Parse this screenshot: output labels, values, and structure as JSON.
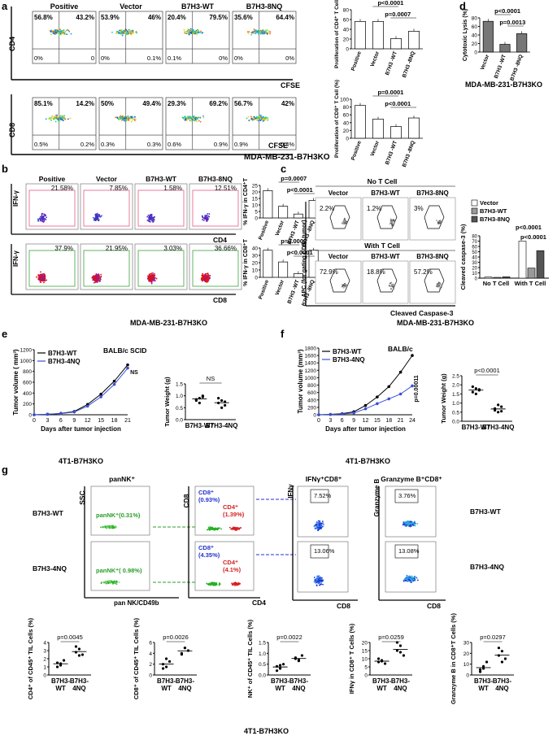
{
  "panel_a": {
    "label": "a",
    "groups": [
      "Positive",
      "Vector",
      "B7H3-WT",
      "B7H3-8NQ"
    ],
    "row1": {
      "ylabel": "CD4",
      "xlabel": "CFSE",
      "quads": [
        {
          "ul": "56.8%",
          "ur": "43.2%",
          "ll": "0%",
          "lr": "0"
        },
        {
          "ul": "53.9%",
          "ur": "46%",
          "ll": "0%",
          "lr": "0.1%"
        },
        {
          "ul": "20.4%",
          "ur": "79.5%",
          "ll": "0.1%",
          "lr": "0%"
        },
        {
          "ul": "35.6%",
          "ur": "64.4%",
          "ll": "0%",
          "lr": "0%"
        }
      ]
    },
    "row2": {
      "ylabel": "CD8",
      "xlabel": "CFSE",
      "quads": [
        {
          "ul": "85.1%",
          "ur": "14.2%",
          "ll": "0.5%",
          "lr": "0.2%"
        },
        {
          "ul": "50%",
          "ur": "49.4%",
          "ll": "0.3%",
          "lr": "0.3%"
        },
        {
          "ul": "29.3%",
          "ur": "69.2%",
          "ll": "0.6%",
          "lr": "0.9%"
        },
        {
          "ul": "56.7%",
          "ur": "42%",
          "ll": "0.9%",
          "lr": "0.4%"
        }
      ]
    },
    "bar1": {
      "ylabel": "Proliferation of CD4⁺ T Cell (%)",
      "ticks": [
        "0",
        "20",
        "40",
        "60",
        "80"
      ],
      "pvals": [
        "p<0.0001",
        "p=0.0007"
      ]
    },
    "bar2": {
      "ylabel": "Proliferation of CD8⁺ T Cell (%)",
      "ticks": [
        "0",
        "20",
        "40",
        "60",
        "80",
        "100"
      ],
      "pvals": [
        "p=0.0001",
        "p<0.0001"
      ]
    },
    "bar_xlabels": [
      "Positive",
      "Vector",
      "B7H3 -WT",
      "B7H3 -8NQ"
    ],
    "footer": "MDA-MB-231-B7H3KO"
  },
  "panel_d": {
    "label": "d",
    "ylabel": "Cytotoxic Lysis (%)",
    "ticks": [
      "0",
      "20",
      "40",
      "60",
      "80"
    ],
    "xlabels": [
      "Vector",
      "B7H3 -WT",
      "B7H3 -8NQ"
    ],
    "pvals": [
      "p<0.0001",
      "p=0.0013"
    ],
    "footer": "MDA-MB-231-B7H3KO"
  },
  "panel_b": {
    "label": "b",
    "groups": [
      "Positive",
      "Vector",
      "B7H3-WT",
      "B7H3-8NQ"
    ],
    "row1": {
      "ylabel": "IFN-γ",
      "xlabel": "CD4",
      "pcts": [
        "21.58%",
        "7.85%",
        "1.58%",
        "12.51%"
      ]
    },
    "row2": {
      "ylabel": "IFN-γ",
      "xlabel": "CD8",
      "pcts": [
        "37.9%",
        "21.95%",
        "3.03%",
        "36.66%"
      ]
    },
    "bar1": {
      "ylabel": "% IFN-γ in CD4⁺T",
      "ticks": [
        "0",
        "5",
        "10",
        "15",
        "20",
        "25"
      ],
      "pvals": [
        "p=0.0007",
        "p<0.0001"
      ]
    },
    "bar2": {
      "ylabel": "% IFN-γ in CD8⁺T",
      "ticks": [
        "0",
        "10",
        "20",
        "30",
        "40"
      ],
      "pvals": [
        "p=0.0002",
        "p<0.0001"
      ]
    },
    "bar_xlabels": [
      "Positive",
      "Vector",
      "B7H3 -WT",
      "B7H3 -8NQ"
    ],
    "footer": "MDA-MB-231-B7H3KO"
  },
  "panel_c": {
    "label": "c",
    "header_no": "No T Cell",
    "header_with": "With T Cell",
    "groups": [
      "Vector",
      "B7H3-WT",
      "B7H3-8NQ"
    ],
    "no_pcts": [
      "2.2%",
      "1.2%",
      "3%"
    ],
    "with_pcts": [
      "72.9%",
      "18.8%",
      "57.2%"
    ],
    "ylabel": "APC (for gating CD3⁻ tumor)",
    "xlabel": "Cleaved Caspase-3",
    "legend": [
      "Vector",
      "B7H3-WT",
      "B7H3-8NQ"
    ],
    "bar": {
      "ylabel": "Cleaved caspase-3 (%)",
      "ticks": [
        "0",
        "10",
        "20",
        "30",
        "40",
        "50",
        "60",
        "70",
        "80"
      ],
      "xlabels": [
        "No T Cell",
        "With T Cell"
      ],
      "pvals": [
        "p<0.0001",
        "p<0.0001"
      ]
    },
    "footer": "MDA-MB-231-B7H3KO"
  },
  "panel_e": {
    "label": "e",
    "title": "BALB/c  SCID",
    "legend": [
      "B7H3-WT",
      "B7H3-4NQ"
    ],
    "ylabel": "Tumor volume ( mm³)",
    "xlabel": "Days after tumor injection",
    "yticks": [
      "0",
      "200",
      "400",
      "600",
      "800",
      "1000",
      "1200"
    ],
    "xticks": [
      "0",
      "3",
      "6",
      "9",
      "12",
      "15",
      "18",
      "21"
    ],
    "ns": "NS",
    "weight": {
      "ylabel": "Tumor Weight (g)",
      "ticks": [
        "0.0",
        "0.5",
        "1.0",
        "1.5"
      ],
      "xlabels": [
        "B7H3-WT",
        "B7H3-4NQ"
      ],
      "ns": "NS"
    },
    "footer": "4T1-B7H3KO"
  },
  "panel_f": {
    "label": "f",
    "title": "BALB/c",
    "legend": [
      "B7H3-WT",
      "B7H3-4NQ"
    ],
    "ylabel": "Tumor volume (mm³)",
    "xlabel": "Days after tumor injection",
    "yticks": [
      "0",
      "200",
      "400",
      "600",
      "800",
      "1000",
      "1200",
      "1400",
      "1600",
      "1800"
    ],
    "xticks": [
      "0",
      "3",
      "6",
      "9",
      "12",
      "15",
      "18",
      "21",
      "24"
    ],
    "pval": "p=0.00011",
    "weight": {
      "ylabel": "Tumor Weight (g)",
      "ticks": [
        "0.0",
        "0.5",
        "1.0",
        "1.5",
        "2.0",
        "2.5"
      ],
      "xlabels": [
        "B7H3-WT",
        "B7H3-4NQ"
      ],
      "pval": "p<0.0001"
    },
    "footer": "4T1-B7H3KO"
  },
  "panel_g": {
    "label": "g",
    "col_titles": [
      "panNK⁺",
      "IFNγ⁺CD8⁺",
      "Granzyme B⁺CD8⁺"
    ],
    "rows": [
      "B7H3-WT",
      "B7H3-4NQ"
    ],
    "nk_pcts": [
      "panNK⁺(0.31%)",
      "panNK⁺( 0.98%)"
    ],
    "cd8_pcts": [
      "CD8⁺ (0.93%)",
      "CD8⁺ (4.35%)"
    ],
    "cd4_pcts": [
      "CD4⁺ (1.39%)",
      "CD4⁺ (4.1%)"
    ],
    "ifn_pcts": [
      "7.52%",
      "13.06%"
    ],
    "gzb_pcts": [
      "3.76%",
      "13.08%"
    ],
    "axis": {
      "ssc": "SSC",
      "nk": "pan NK/CD49b",
      "cd8": "CD8",
      "cd4": "CD4",
      "ifn": "IFNγ",
      "gzb": "Granzyme B",
      "cd8x": "CD8"
    },
    "plots": [
      {
        "ylabel": "CD4⁺ of CD45⁺ TIL Cells (%)",
        "ticks": [
          "0",
          "1",
          "2",
          "3",
          "4"
        ],
        "pval": "p=0.0045"
      },
      {
        "ylabel": "CD8⁺ of CD45⁺ TIL Cells (%)",
        "ticks": [
          "0",
          "2",
          "4",
          "6"
        ],
        "pval": "p=0.0026"
      },
      {
        "ylabel": "NK⁺ of CD45⁺ TIL Cells (%)",
        "ticks": [
          "0.0",
          "0.5",
          "1.0",
          "1.5"
        ],
        "pval": "p=0.0022"
      },
      {
        "ylabel": "IFNγ in CD8⁺ T Cells (%)",
        "ticks": [
          "0",
          "5",
          "10",
          "15",
          "20"
        ],
        "pval": "p=0.0259"
      },
      {
        "ylabel": "Granzyme B in CD8⁺T Cells (%)",
        "ticks": [
          "0",
          "10",
          "20",
          "30"
        ],
        "pval": "p=0.0297"
      }
    ],
    "plot_xlabels": [
      "B7H3- WT",
      "B7H3- 4NQ"
    ],
    "footer": "4T1-B7H3KO"
  }
}
